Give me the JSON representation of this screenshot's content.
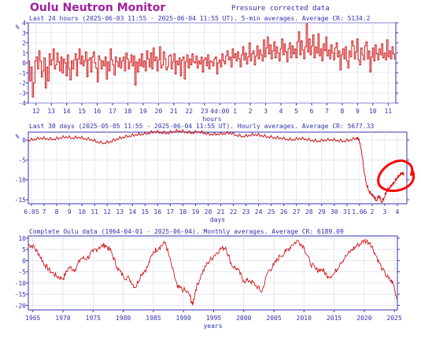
{
  "header": {
    "site_title": "Oulu Neutron Monitor",
    "subtitle": "Pressure corrected data"
  },
  "colors": {
    "line": "#cc0000",
    "frame": "#3030b0",
    "grid": "#d8d8f0",
    "title": "#a020a0",
    "annotation": "#ff0000"
  },
  "chart_data": [
    {
      "type": "line",
      "title": "Last 24 hours (2025-06-03 11:55 - 2025-06-04 11:55 UT). 5-min averages. Average CR: 5134.2",
      "ylabel": "%",
      "xlabel": "hours",
      "ylim": [
        -4,
        4
      ],
      "yticks": [
        4,
        3,
        2,
        1,
        0,
        -1,
        -2,
        -3,
        -4
      ],
      "x_tick_labels": [
        "12",
        "13",
        "14",
        "15",
        "16",
        "17",
        "18",
        "19",
        "20",
        "21",
        "22",
        "23",
        "4d:00",
        "1",
        "2",
        "3",
        "4",
        "5",
        "6",
        "7",
        "8",
        "9",
        "10",
        "11"
      ],
      "x_range_hours": [
        0,
        24
      ],
      "grid": true,
      "series": [
        {
          "values": [
            0.2,
            -1.8,
            -0.4,
            -3.4,
            -2.0,
            0.2,
            0.6,
            -0.6,
            1.2,
            0.2,
            -1.4,
            -0.8,
            0.5,
            -2.5,
            -0.4,
            -1.8,
            0.9,
            -0.2,
            0.3,
            1.4,
            -0.6,
            -0.2,
            1.0,
            0.1,
            -0.8,
            0.6,
            -1.0,
            0.4,
            0.0,
            -1.3,
            0.8,
            -0.6,
            -1.7,
            0.2,
            -0.6,
            0.3,
            0.9,
            -1.3,
            0.4,
            1.4,
            -0.1,
            0.7,
            -0.3,
            0.2,
            1.1,
            -1.4,
            0.3,
            0.5,
            -0.9,
            0.6,
            1.1,
            0.0,
            -0.5,
            -1.9,
            0.7,
            0.3,
            -0.6,
            0.2,
            -0.3,
            0.6,
            -1.6,
            0.1,
            -0.8,
            1.4,
            0.3,
            -0.2,
            -1.2,
            0.6,
            0.1,
            -0.4,
            0.5,
            -0.5,
            0.2,
            0.6,
            -0.8,
            1.0,
            0.4,
            -0.6,
            0.1,
            0.8,
            -0.3,
            0.7,
            -2.2,
            0.1,
            -0.9,
            0.4,
            -0.3,
            0.9,
            -0.4,
            0.2,
            -0.8,
            1.2,
            0.4,
            -0.4,
            1.0,
            -0.6,
            1.5,
            0.2,
            0.6,
            -0.8,
            0.3,
            1.6,
            -0.5,
            -0.2,
            1.1,
            0.4,
            -0.7,
            -0.4,
            0.7,
            0.8,
            -0.6,
            0.1,
            0.9,
            -1.1,
            0.2,
            -0.2,
            0.5,
            -1.3,
            0.3,
            0.6,
            -1.6,
            0.1,
            0.8,
            -0.5,
            0.4,
            -0.2,
            0.9,
            0.1,
            0.0,
            0.7,
            -0.5,
            0.2,
            -0.1,
            0.6,
            -0.9,
            0.3,
            0.5,
            -0.3,
            0.8,
            -0.6,
            0.2,
            0.1,
            -0.3,
            0.4,
            0.6,
            -1.1,
            0.0,
            0.3,
            -0.4,
            0.9,
            0.2,
            -0.1,
            0.7,
            1.2,
            0.3,
            0.6,
            -0.4,
            1.4,
            0.5,
            0.9,
            0.2,
            1.1,
            0.4,
            -0.4,
            0.8,
            1.6,
            0.3,
            1.0,
            -0.1,
            0.6,
            2.0,
            0.2,
            0.9,
            1.2,
            -0.2,
            0.7,
            1.7,
            0.4,
            1.3,
            0.8,
            0.2,
            2.3,
            0.6,
            1.5,
            2.6,
            0.9,
            1.8,
            0.4,
            1.2,
            2.1,
            0.5,
            1.6,
            1.0,
            0.2,
            1.4,
            2.4,
            0.8,
            1.9,
            1.1,
            0.1,
            1.4,
            2.0,
            0.5,
            1.7,
            0.9,
            1.4,
            0.5,
            2.1,
            3.1,
            0.8,
            2.2,
            1.3,
            0.4,
            1.6,
            3.9,
            1.1,
            2.4,
            0.8,
            1.7,
            2.8,
            0.5,
            1.6,
            1.0,
            2.9,
            0.7,
            1.4,
            0.2,
            1.9,
            1.2,
            2.6,
            0.7,
            1.3,
            0.4,
            1.8,
            1.0,
            0.3,
            1.5,
            2.0,
            0.6,
            1.2,
            -0.7,
            0.8,
            1.4,
            0.4,
            1.6,
            0.2,
            -0.5,
            1.2,
            0.6,
            2.2,
            1.7,
            0.4,
            1.1,
            2.4,
            0.3,
            -0.2,
            1.5,
            0.8,
            0.3,
            1.7,
            2.1,
            0.4,
            1.2,
            -0.9,
            0.6,
            1.5,
            0.2,
            1.8,
            0.9,
            0.3,
            1.4,
            0.8,
            1.9,
            0.5,
            1.0,
            0.3,
            2.3,
            0.6,
            1.2,
            0.4,
            1.6,
            0.9,
            0.4
          ]
        }
      ]
    },
    {
      "type": "line",
      "title": "Last 30 days (2025-05-05 11:55 - 2025-06-04 11:55 UT). Hourly averages. Average CR: 5677.33",
      "ylabel": "%",
      "xlabel": "days",
      "ylim": [
        -16,
        2
      ],
      "yticks": [
        0,
        -5,
        -10,
        -15
      ],
      "x_tick_labels": [
        "6.05",
        "7",
        "8",
        "9",
        "10",
        "11",
        "12",
        "13",
        "14",
        "15",
        "16",
        "17",
        "18",
        "19",
        "20",
        "21",
        "22",
        "23",
        "24",
        "25",
        "26",
        "27",
        "28",
        "29",
        "30",
        "31",
        "1.06",
        "2",
        "3",
        "4"
      ],
      "x_range_days": [
        0,
        30
      ],
      "grid": true,
      "series": [
        {
          "x_days": [
            0,
            0.5,
            1,
            1.5,
            2,
            2.5,
            3,
            3.5,
            4,
            4.5,
            5,
            5.5,
            6,
            6.5,
            7,
            7.5,
            8,
            8.5,
            9,
            9.5,
            10,
            10.5,
            11,
            11.5,
            12,
            12.5,
            13,
            13.5,
            14,
            14.5,
            15,
            15.5,
            16,
            16.5,
            17,
            17.5,
            18,
            18.5,
            19,
            19.5,
            20,
            20.5,
            21,
            21.5,
            22,
            22.5,
            23,
            23.5,
            24,
            24.5,
            25,
            25.5,
            26,
            26.2,
            26.4,
            26.6,
            26.8,
            27,
            27.2,
            27.4,
            27.6,
            27.8,
            28,
            28.2,
            28.4,
            28.6,
            28.8,
            29,
            29.2,
            29.4,
            29.6,
            29.8
          ],
          "values": [
            0.0,
            0.3,
            0.6,
            0.4,
            0.3,
            0.6,
            0.9,
            0.6,
            0.8,
            0.4,
            0.2,
            -0.4,
            -0.7,
            -0.3,
            0.3,
            0.8,
            1.1,
            1.4,
            1.6,
            1.8,
            2.2,
            2.0,
            1.8,
            2.2,
            2.4,
            2.1,
            1.9,
            2.2,
            1.8,
            1.5,
            1.6,
            1.7,
            1.9,
            1.3,
            1.0,
            1.3,
            1.5,
            1.2,
            0.9,
            0.7,
            0.6,
            0.3,
            0.2,
            0.5,
            0.3,
            0.0,
            -0.2,
            0.1,
            0.2,
            0.0,
            -0.2,
            0.1,
            0.6,
            0.3,
            -2.5,
            -7.5,
            -11.0,
            -12.8,
            -13.5,
            -14.2,
            -15.2,
            -13.8,
            -15.6,
            -14.5,
            -12.8,
            -12.0,
            -11.2,
            -10.6,
            -9.5,
            -8.8,
            -8.2,
            -8.5
          ]
        }
      ],
      "annotation": "hand-drawn red circle around the recent recovery"
    },
    {
      "type": "line",
      "title": "Complete Oulu data (1964-04-01 - 2025-06-04). Monthly averages. Average CR: 6189.09",
      "ylabel": "",
      "xlabel": "years",
      "ylim": [
        -22,
        11
      ],
      "yticks": [
        10,
        5,
        0,
        -5,
        -10,
        -15,
        -20
      ],
      "x_tick_labels": [
        "1965",
        "1970",
        "1975",
        "1980",
        "1985",
        "1990",
        "1995",
        "2000",
        "2005",
        "2010",
        "2015",
        "2020",
        "2025"
      ],
      "x_range_years": [
        1964.25,
        2025.5
      ],
      "grid": true,
      "series": [
        {
          "x_years": [
            1964.3,
            1965,
            1966,
            1967,
            1968,
            1969,
            1970,
            1971,
            1972,
            1973,
            1974,
            1975,
            1976,
            1977,
            1978,
            1979,
            1980,
            1981,
            1982,
            1983,
            1984,
            1985,
            1986,
            1987,
            1988,
            1989,
            1990,
            1991,
            1991.5,
            1992,
            1993,
            1994,
            1995,
            1996,
            1997,
            1998,
            1999,
            2000,
            2001,
            2002,
            2003,
            2004,
            2005,
            2006,
            2007,
            2008,
            2009,
            2010,
            2011,
            2012,
            2013,
            2014,
            2015,
            2016,
            2017,
            2018,
            2019,
            2020,
            2021,
            2022,
            2023,
            2024,
            2024.8,
            2025.4
          ],
          "values": [
            7,
            6.5,
            3,
            -2,
            -5,
            -7,
            -8,
            -3,
            -4,
            1,
            1,
            4,
            6,
            7,
            4,
            -3,
            -7,
            -8,
            -12,
            -6,
            -3,
            4,
            6,
            8,
            -2,
            -12,
            -13,
            -15,
            -20,
            -13,
            -6,
            -1,
            2,
            5,
            6,
            -2,
            -4,
            -9,
            -9,
            -11,
            -14,
            -5,
            -2,
            2,
            4,
            7,
            9,
            6,
            -1,
            -4,
            -4,
            -7,
            -6,
            -1,
            2,
            5,
            7,
            9,
            8,
            2,
            -4,
            -8,
            -10,
            -17
          ]
        }
      ]
    }
  ]
}
